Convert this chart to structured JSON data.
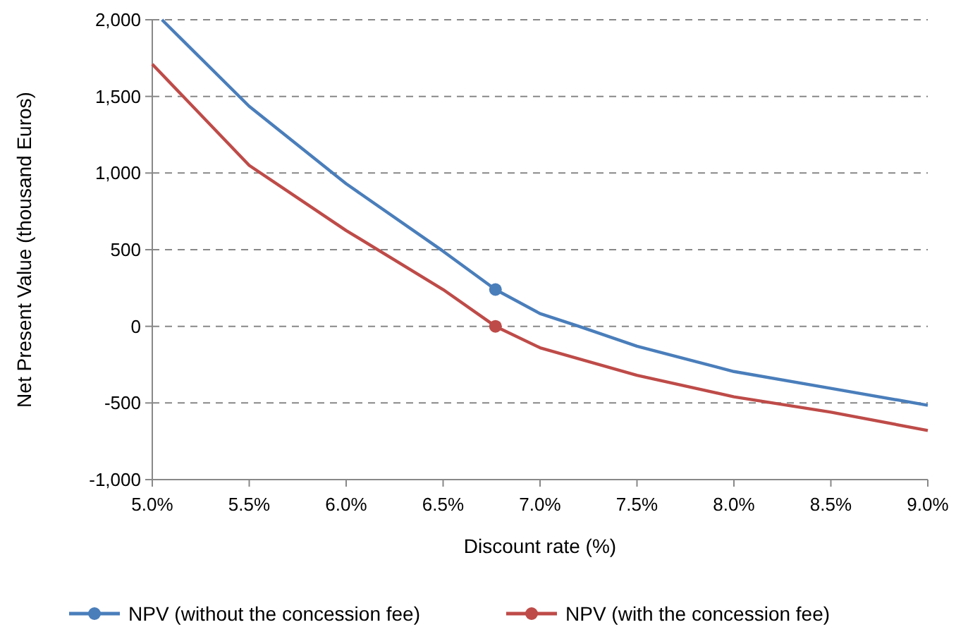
{
  "chart_data": {
    "type": "line",
    "xlabel": "Discount rate (%)",
    "ylabel": "Net Present Value (thousand Euros)",
    "xlim": [
      5,
      9
    ],
    "xticks": [
      {
        "value": 5,
        "label": "5.0%"
      },
      {
        "value": 5.5,
        "label": "5.5%"
      },
      {
        "value": 6,
        "label": "6.0%"
      },
      {
        "value": 6.5,
        "label": "6.5%"
      },
      {
        "value": 7,
        "label": "7.0%"
      },
      {
        "value": 7.5,
        "label": "7.5%"
      },
      {
        "value": 8,
        "label": "8.0%"
      },
      {
        "value": 8.5,
        "label": "8.5%"
      },
      {
        "value": 9,
        "label": "9.0%"
      }
    ],
    "ylim": [
      -1000,
      2000
    ],
    "yticks": [
      {
        "value": -1000,
        "label": "-1,000"
      },
      -500,
      0,
      500,
      {
        "value": 1000,
        "label": "1,000"
      },
      {
        "value": 1500,
        "label": "1,500"
      },
      {
        "value": 2000,
        "label": "2,000"
      }
    ],
    "grid": "y",
    "legend": "bottom",
    "line_style": "solid",
    "series": [
      {
        "name": "NPV (without the concession fee)",
        "color": "#4a7ebb",
        "x": [
          5.05,
          5.5,
          6,
          6.5,
          6.77,
          7,
          7.2,
          7.5,
          8,
          8.5,
          9
        ],
        "values": [
          2000,
          1435,
          930,
          490,
          240,
          83,
          0,
          -130,
          -295,
          -405,
          -515
        ]
      },
      {
        "name": "NPV (with the concession fee)",
        "color": "#be4b48",
        "x": [
          5,
          5.5,
          6,
          6.5,
          6.77,
          7,
          7.5,
          8,
          8.5,
          9
        ],
        "values": [
          1710,
          1050,
          625,
          240,
          0,
          -140,
          -320,
          -460,
          -560,
          -680
        ]
      },
      {
        "type": "scatter",
        "color": "#4a7ebb",
        "x": [
          6.77
        ],
        "values": [
          240
        ],
        "marker": "circle"
      },
      {
        "type": "scatter",
        "color": "#be4b48",
        "x": [
          6.77
        ],
        "values": [
          0
        ],
        "marker": "circle"
      }
    ]
  }
}
